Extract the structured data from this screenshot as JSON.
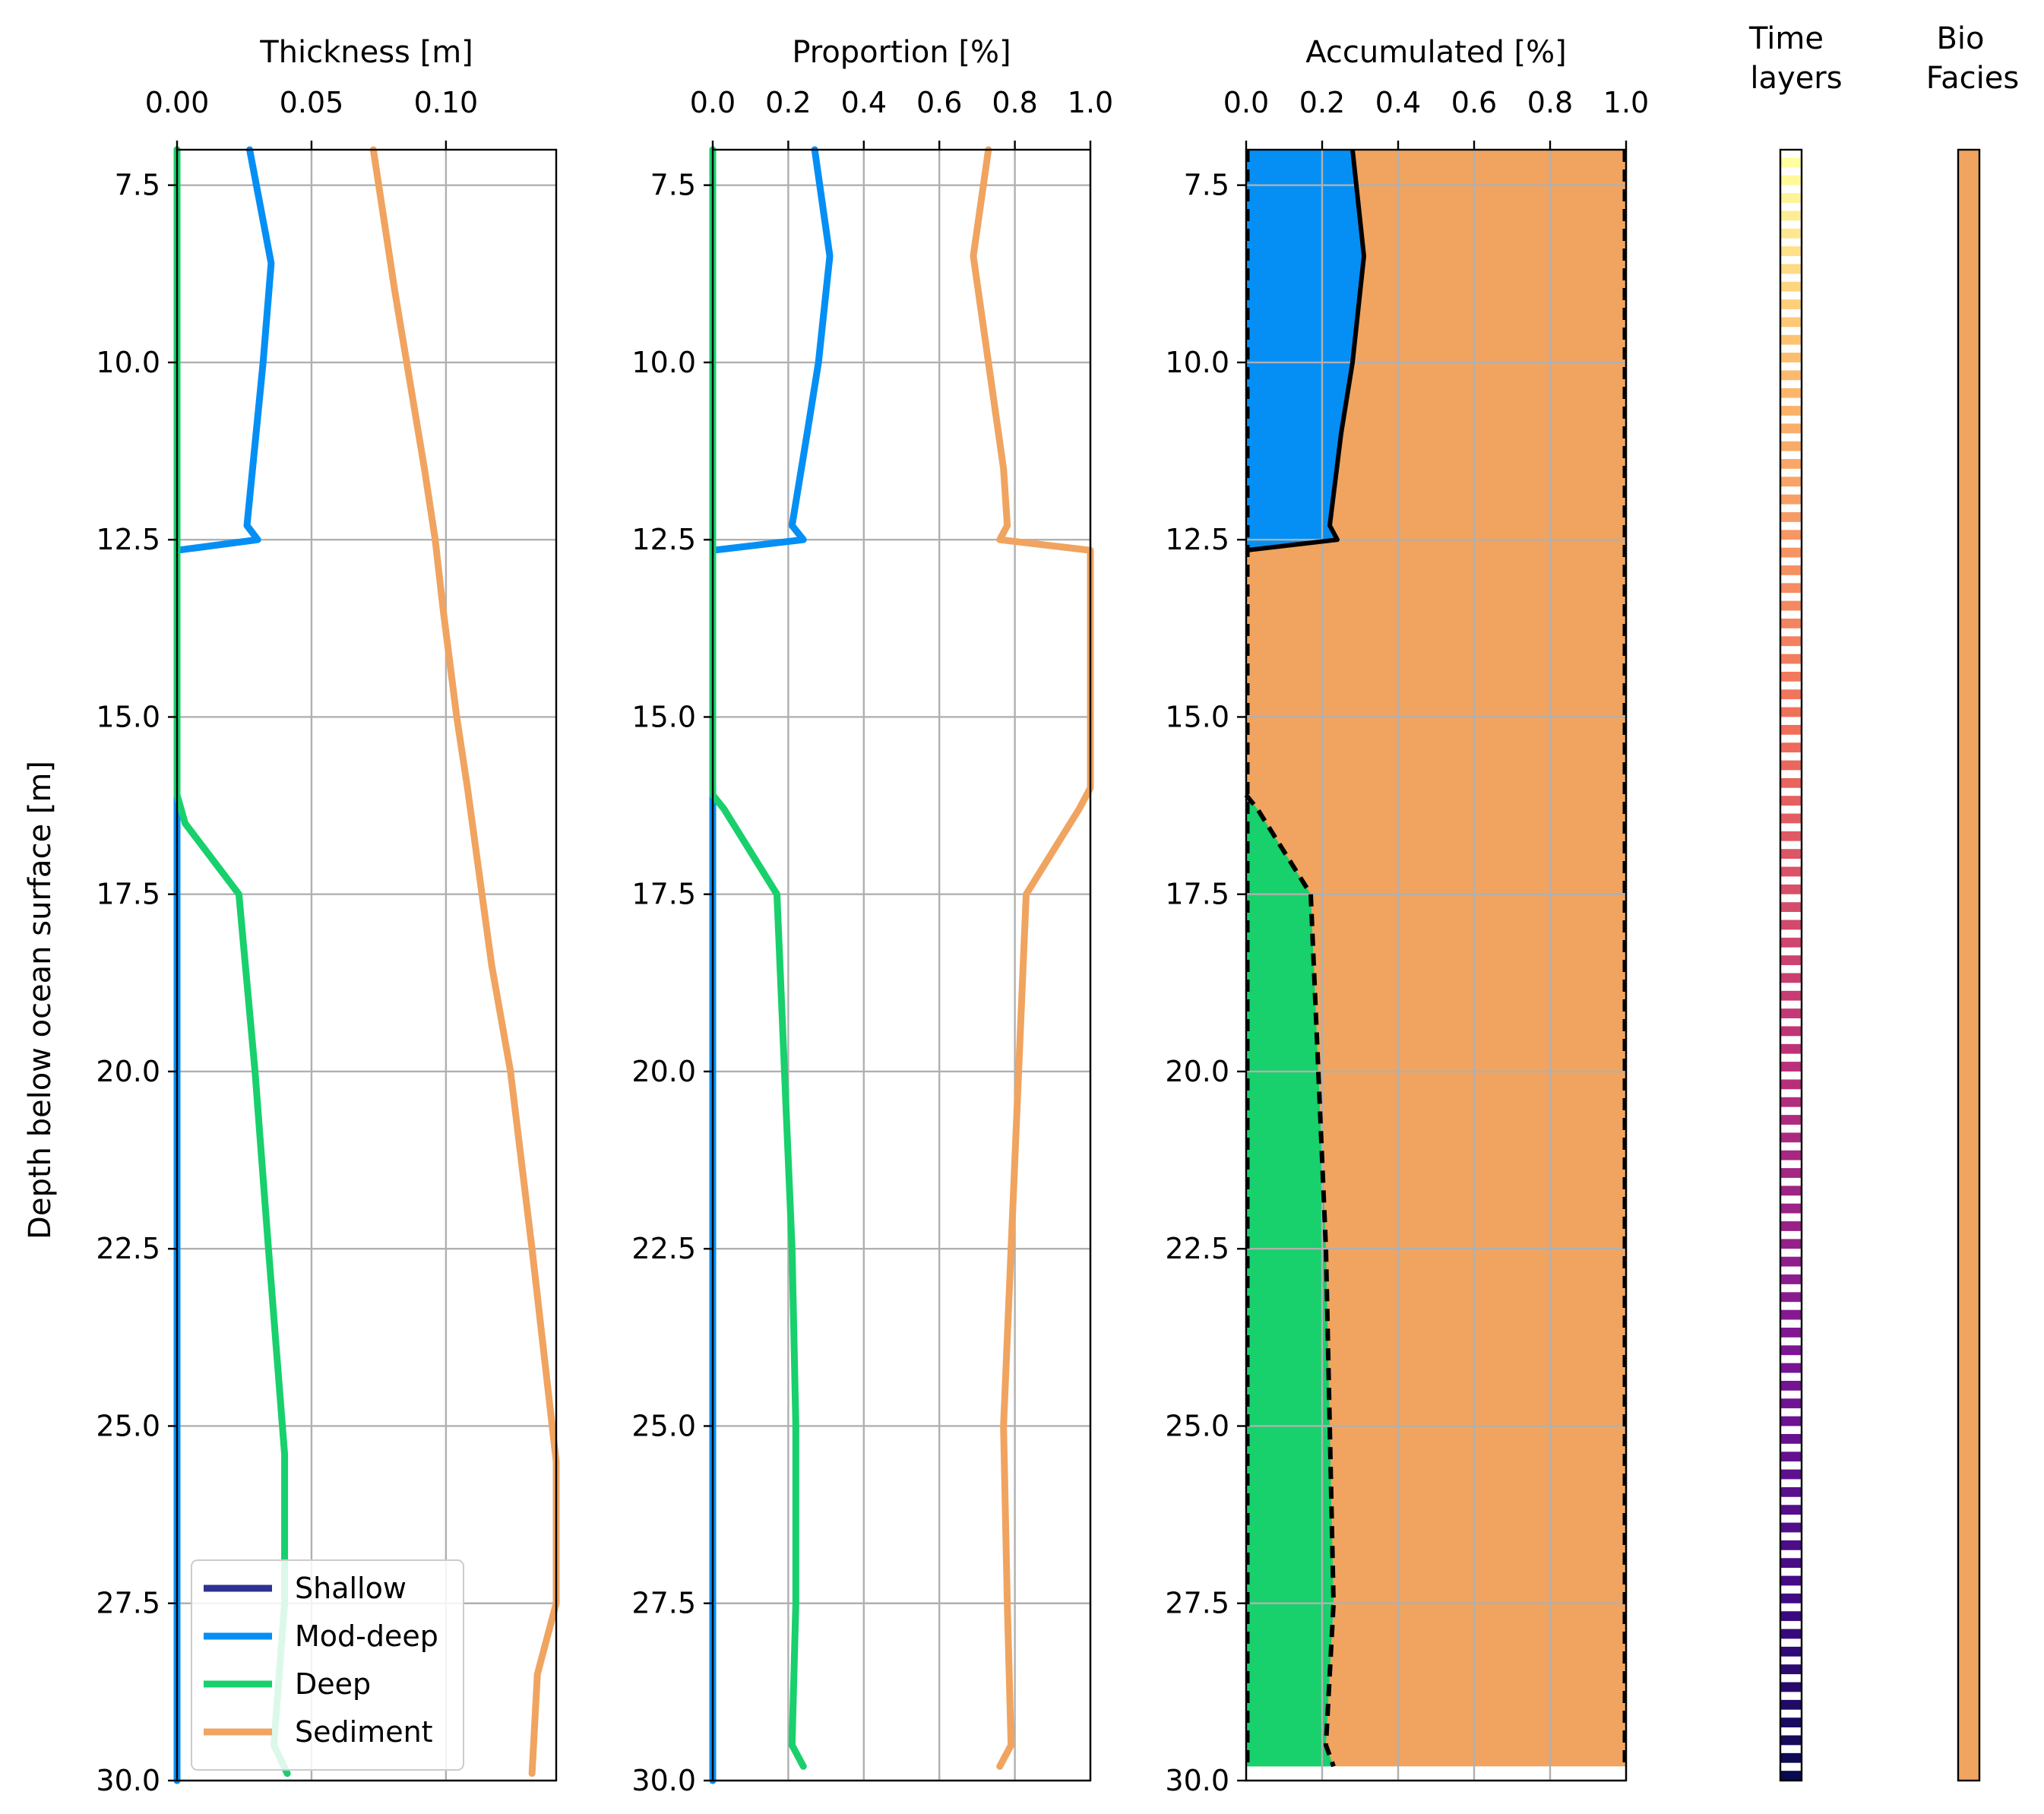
{
  "colors": {
    "shallow": "#2e3192",
    "mod_deep": "#058ff5",
    "deep": "#18d06c",
    "sediment": "#f0a460",
    "grid": "#b0b0b0",
    "outline": "#000000"
  },
  "figure": {
    "ylabel": "Depth below ocean surface [m]",
    "y_ticks": [
      "7.5",
      "10.0",
      "12.5",
      "15.0",
      "17.5",
      "20.0",
      "22.5",
      "25.0",
      "27.5",
      "30.0"
    ],
    "time_layers_title": [
      "Time",
      "layers"
    ],
    "bio_facies_title": [
      "Bio",
      "Facies"
    ]
  },
  "legend": {
    "placement": "lower-left",
    "items": [
      {
        "label": "Shallow",
        "color_key": "shallow"
      },
      {
        "label": "Mod-deep",
        "color_key": "mod_deep"
      },
      {
        "label": "Deep",
        "color_key": "deep"
      },
      {
        "label": "Sediment",
        "color_key": "sediment"
      }
    ]
  },
  "chart_data": [
    {
      "type": "line",
      "title": "Thickness [m]",
      "xlim": [
        0,
        0.141
      ],
      "ylim": [
        30.0,
        7.0
      ],
      "y_inverted": true,
      "x_ticks": [
        0.0,
        0.05,
        0.1
      ],
      "x_tick_labels": [
        "0.00",
        "0.05",
        "0.10"
      ],
      "grid": true,
      "series": [
        {
          "name": "Shallow",
          "color_key": "shallow",
          "points": [
            [
              0,
              7.0
            ],
            [
              0,
              30.0
            ]
          ]
        },
        {
          "name": "Mod-deep",
          "color_key": "mod_deep",
          "points": [
            [
              0.027,
              7.0
            ],
            [
              0.035,
              8.6
            ],
            [
              0.032,
              10.0
            ],
            [
              0.026,
              12.3
            ],
            [
              0.03,
              12.5
            ],
            [
              0.0,
              12.65
            ],
            [
              0.0,
              30.0
            ]
          ]
        },
        {
          "name": "Deep",
          "color_key": "deep",
          "points": [
            [
              0,
              7.0
            ],
            [
              0,
              16.1
            ],
            [
              0.003,
              16.5
            ],
            [
              0.023,
              17.5
            ],
            [
              0.029,
              20.0
            ],
            [
              0.034,
              22.5
            ],
            [
              0.04,
              25.4
            ],
            [
              0.04,
              27.5
            ],
            [
              0.036,
              29.5
            ],
            [
              0.041,
              29.9
            ]
          ]
        },
        {
          "name": "Sediment",
          "color_key": "sediment",
          "points": [
            [
              0.073,
              7.0
            ],
            [
              0.081,
              9.0
            ],
            [
              0.092,
              11.5
            ],
            [
              0.096,
              12.5
            ],
            [
              0.099,
              13.5
            ],
            [
              0.104,
              15.0
            ],
            [
              0.108,
              16.0
            ],
            [
              0.117,
              18.5
            ],
            [
              0.124,
              20.0
            ],
            [
              0.132,
              22.5
            ],
            [
              0.141,
              25.5
            ],
            [
              0.141,
              27.5
            ],
            [
              0.134,
              28.5
            ],
            [
              0.132,
              29.9
            ]
          ]
        }
      ]
    },
    {
      "type": "line",
      "title": "Proportion [%]",
      "xlim": [
        0,
        1.0
      ],
      "ylim": [
        30.0,
        7.0
      ],
      "y_inverted": true,
      "x_ticks": [
        0.0,
        0.2,
        0.4,
        0.6,
        0.8,
        1.0
      ],
      "x_tick_labels": [
        "0.0",
        "0.2",
        "0.4",
        "0.6",
        "0.8",
        "1.0"
      ],
      "grid": true,
      "series": [
        {
          "name": "Shallow",
          "color_key": "shallow",
          "points": [
            [
              0,
              7.0
            ],
            [
              0,
              30.0
            ]
          ]
        },
        {
          "name": "Mod-deep",
          "color_key": "mod_deep",
          "points": [
            [
              0.27,
              7.0
            ],
            [
              0.31,
              8.5
            ],
            [
              0.28,
              10.0
            ],
            [
              0.25,
              11.0
            ],
            [
              0.21,
              12.3
            ],
            [
              0.24,
              12.5
            ],
            [
              0.0,
              12.65
            ],
            [
              0.0,
              30.0
            ]
          ]
        },
        {
          "name": "Deep",
          "color_key": "deep",
          "points": [
            [
              0,
              7.0
            ],
            [
              0,
              16.1
            ],
            [
              0.03,
              16.3
            ],
            [
              0.17,
              17.5
            ],
            [
              0.19,
              20.0
            ],
            [
              0.21,
              22.5
            ],
            [
              0.22,
              25.0
            ],
            [
              0.22,
              27.5
            ],
            [
              0.21,
              29.5
            ],
            [
              0.24,
              29.8
            ]
          ]
        },
        {
          "name": "Sediment",
          "color_key": "sediment",
          "points": [
            [
              0.73,
              7.0
            ],
            [
              0.69,
              8.5
            ],
            [
              0.73,
              10.0
            ],
            [
              0.77,
              11.5
            ],
            [
              0.78,
              12.3
            ],
            [
              0.76,
              12.5
            ],
            [
              1.0,
              12.65
            ],
            [
              1.0,
              16.0
            ],
            [
              0.97,
              16.3
            ],
            [
              0.83,
              17.5
            ],
            [
              0.81,
              20.0
            ],
            [
              0.79,
              22.5
            ],
            [
              0.77,
              25.0
            ],
            [
              0.78,
              27.5
            ],
            [
              0.79,
              29.5
            ],
            [
              0.76,
              29.8
            ]
          ]
        }
      ]
    },
    {
      "type": "area",
      "title": "Accumulated [%]",
      "xlim": [
        0,
        1.0
      ],
      "ylim": [
        30.0,
        7.0
      ],
      "y_inverted": true,
      "x_ticks": [
        0.0,
        0.2,
        0.4,
        0.6,
        0.8,
        1.0
      ],
      "x_tick_labels": [
        "0.0",
        "0.2",
        "0.4",
        "0.6",
        "0.8",
        "1.0"
      ],
      "grid": true,
      "bottom_depth": 29.8,
      "series": [
        {
          "name": "Mod-deep",
          "color_key": "mod_deep",
          "line_style": "solid",
          "points": [
            [
              0.28,
              7.0
            ],
            [
              0.31,
              8.5
            ],
            [
              0.28,
              10.0
            ],
            [
              0.25,
              11.0
            ],
            [
              0.22,
              12.3
            ],
            [
              0.24,
              12.5
            ],
            [
              0.0,
              12.65
            ]
          ]
        },
        {
          "name": "Deep",
          "color_key": "deep",
          "line_style": "dashed",
          "points": [
            [
              0.0,
              16.1
            ],
            [
              0.03,
              16.3
            ],
            [
              0.17,
              17.5
            ],
            [
              0.19,
              20.0
            ],
            [
              0.21,
              22.5
            ],
            [
              0.22,
              25.0
            ],
            [
              0.23,
              27.5
            ],
            [
              0.21,
              29.5
            ],
            [
              0.23,
              29.8
            ]
          ]
        },
        {
          "name": "Sediment",
          "color_key": "sediment",
          "points": [
            [
              1.0,
              7.0
            ],
            [
              1.0,
              29.8
            ]
          ]
        }
      ]
    }
  ]
}
